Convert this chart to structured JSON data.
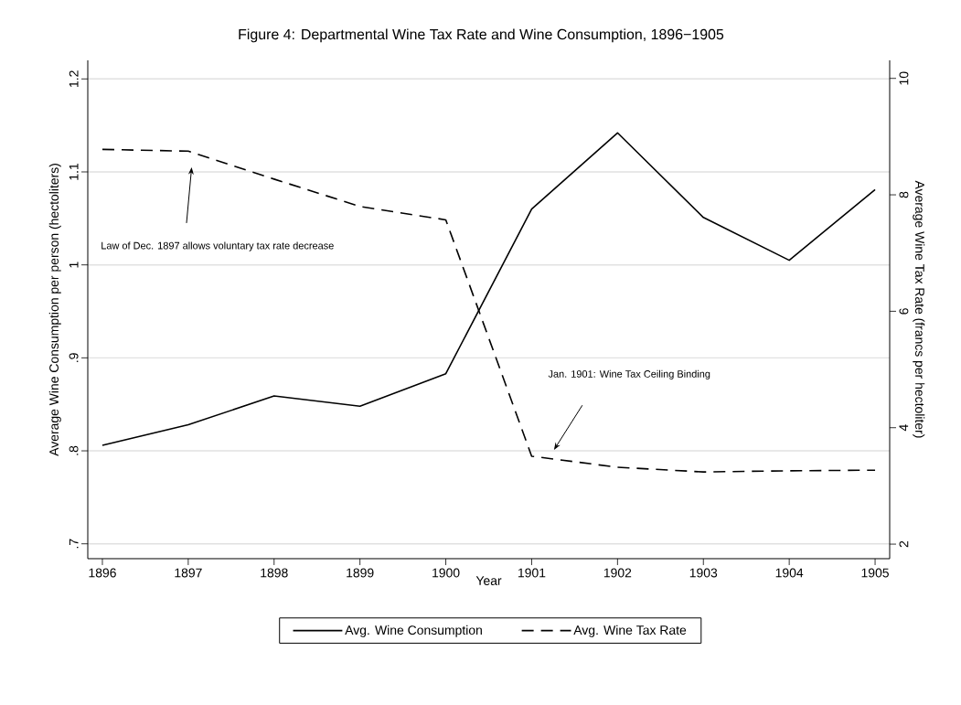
{
  "chart_data": {
    "type": "line",
    "title": "Figure 4:  Departmental Wine Tax Rate and Wine Consumption, 1896−1905",
    "xlabel": "Year",
    "ylabel": "Average Wine Consumption per person (hectoliters)",
    "y2label": "Average Wine Tax Rate (francs per hectoliter)",
    "x": [
      1896,
      1897,
      1898,
      1899,
      1900,
      1901,
      1902,
      1903,
      1904,
      1905
    ],
    "series": [
      {
        "name": "Avg. Wine Consumption",
        "color": "#000000",
        "line_style": "solid",
        "values": [
          0.806,
          0.828,
          0.859,
          0.848,
          0.883,
          1.06,
          1.142,
          1.051,
          1.005,
          1.081
        ]
      },
      {
        "name": "Avg. Wine Tax Rate",
        "color": "#000000",
        "line_style": "dashed",
        "axis": "y2",
        "values": [
          8.78,
          8.75,
          8.27,
          7.8,
          7.57,
          3.51,
          3.32,
          3.24,
          3.26,
          3.27
        ]
      }
    ],
    "xlim": [
      1895.83,
      1905.17
    ],
    "xticks": [
      1896,
      1897,
      1898,
      1899,
      1900,
      1901,
      1902,
      1903,
      1904,
      1905
    ],
    "ylim": [
      0.684,
      1.22
    ],
    "yticks": [
      {
        "value": 0.7,
        "label": ".7"
      },
      {
        "value": 0.8,
        "label": ".8"
      },
      {
        "value": 0.9,
        "label": ".9"
      },
      {
        "value": 1.0,
        "label": "1"
      },
      {
        "value": 1.1,
        "label": "1.1"
      },
      {
        "value": 1.2,
        "label": "1.2"
      }
    ],
    "y2lim": [
      1.75,
      10.31
    ],
    "y2ticks": [
      2,
      4,
      6,
      8,
      10
    ],
    "grid": "y",
    "legend": "bottom",
    "marker": "none",
    "annotations": [
      "Law of Dec. 1897 allows voluntary tax rate decrease",
      "Jan. 1901:  Wine Tax Ceiling Binding"
    ]
  }
}
